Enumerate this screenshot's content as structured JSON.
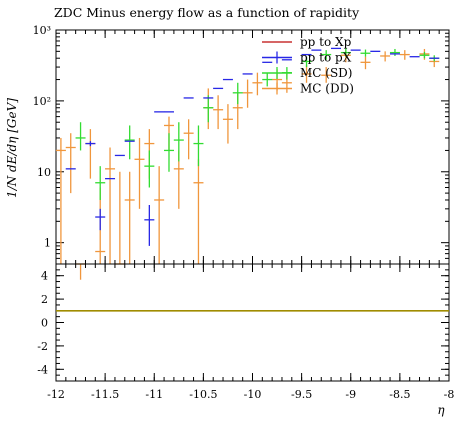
{
  "chart_data": {
    "type": "scatter",
    "title": "ZDC Minus energy flow as a function of rapidity",
    "xlabel": "η",
    "ylabel": "1/N dE/dη [GeV]",
    "xlim": [
      -12,
      -8
    ],
    "ylim_log": [
      0.5,
      1000
    ],
    "x_ticks": [
      "-12",
      "-11.5",
      "-11",
      "-10.5",
      "-10",
      "-9.5",
      "-9",
      "-8.5",
      "-8"
    ],
    "y_ticks": [
      "1",
      "10",
      "10²",
      "10³"
    ],
    "ratio_ylim": [
      -5,
      5
    ],
    "ratio_ticks": [
      "4",
      "2",
      "0",
      "-2",
      "-4"
    ],
    "legend": [
      "pp to Xp",
      "pp to pX",
      "MC (SD)",
      "MC (DD)"
    ],
    "colors": {
      "xp": "#c83232",
      "px": "#2828e6",
      "sd": "#32dc32",
      "dd": "#f0963c",
      "ratio": "#a08c00"
    },
    "series": [
      {
        "name": "pp to pX",
        "color": "#2828e6",
        "points": [
          {
            "x": -11.85,
            "y": 11,
            "lo": 11,
            "hi": 11
          },
          {
            "x": -11.65,
            "y": 25,
            "lo": 23,
            "hi": 27
          },
          {
            "x": -11.55,
            "y": 2.3,
            "lo": 1.5,
            "hi": 3
          },
          {
            "x": -11.45,
            "y": 8,
            "lo": 8,
            "hi": 8
          },
          {
            "x": -11.35,
            "y": 17,
            "lo": 17,
            "hi": 17
          },
          {
            "x": -11.25,
            "y": 27,
            "lo": 27,
            "hi": 27
          },
          {
            "x": -11.05,
            "y": 2.1,
            "lo": 0.9,
            "hi": 3.4
          },
          {
            "x": -10.95,
            "y": 70,
            "lo": 70,
            "hi": 70
          },
          {
            "x": -10.85,
            "y": 70,
            "lo": 70,
            "hi": 70
          },
          {
            "x": -10.65,
            "y": 110,
            "lo": 110,
            "hi": 110
          },
          {
            "x": -10.45,
            "y": 110,
            "lo": 110,
            "hi": 110
          },
          {
            "x": -10.35,
            "y": 150,
            "lo": 150,
            "hi": 150
          },
          {
            "x": -10.25,
            "y": 200,
            "lo": 200,
            "hi": 200
          },
          {
            "x": -10.05,
            "y": 240,
            "lo": 240,
            "hi": 240
          },
          {
            "x": -9.85,
            "y": 350,
            "lo": 350,
            "hi": 350
          },
          {
            "x": -9.65,
            "y": 380,
            "lo": 380,
            "hi": 380
          },
          {
            "x": -9.45,
            "y": 450,
            "lo": 450,
            "hi": 450
          },
          {
            "x": -9.35,
            "y": 520,
            "lo": 520,
            "hi": 520
          },
          {
            "x": -9.15,
            "y": 550,
            "lo": 550,
            "hi": 550
          },
          {
            "x": -8.95,
            "y": 520,
            "lo": 520,
            "hi": 520
          },
          {
            "x": -8.75,
            "y": 500,
            "lo": 500,
            "hi": 500
          },
          {
            "x": -8.55,
            "y": 460,
            "lo": 460,
            "hi": 460
          },
          {
            "x": -8.35,
            "y": 420,
            "lo": 420,
            "hi": 420
          },
          {
            "x": -8.15,
            "y": 400,
            "lo": 400,
            "hi": 400
          }
        ]
      },
      {
        "name": "MC (SD)",
        "color": "#32dc32",
        "points": [
          {
            "x": -11.75,
            "y": 30,
            "lo": 20,
            "hi": 50
          },
          {
            "x": -11.55,
            "y": 7,
            "lo": 4,
            "hi": 12
          },
          {
            "x": -11.25,
            "y": 28,
            "lo": 15,
            "hi": 45
          },
          {
            "x": -11.05,
            "y": 12,
            "lo": 6,
            "hi": 20
          },
          {
            "x": -10.85,
            "y": 20,
            "lo": 10,
            "hi": 35
          },
          {
            "x": -10.75,
            "y": 28,
            "lo": 14,
            "hi": 50
          },
          {
            "x": -10.55,
            "y": 25,
            "lo": 12,
            "hi": 45
          },
          {
            "x": -10.45,
            "y": 80,
            "lo": 50,
            "hi": 120
          },
          {
            "x": -10.15,
            "y": 130,
            "lo": 90,
            "hi": 180
          },
          {
            "x": -9.85,
            "y": 200,
            "lo": 160,
            "hi": 250
          },
          {
            "x": -9.65,
            "y": 250,
            "lo": 200,
            "hi": 300
          },
          {
            "x": -9.45,
            "y": 360,
            "lo": 300,
            "hi": 420
          },
          {
            "x": -9.25,
            "y": 450,
            "lo": 380,
            "hi": 520
          },
          {
            "x": -9.05,
            "y": 480,
            "lo": 420,
            "hi": 550
          },
          {
            "x": -8.85,
            "y": 470,
            "lo": 420,
            "hi": 530
          },
          {
            "x": -8.55,
            "y": 480,
            "lo": 430,
            "hi": 540
          },
          {
            "x": -8.25,
            "y": 440,
            "lo": 400,
            "hi": 490
          },
          {
            "x": -8.15,
            "y": 400,
            "lo": 360,
            "hi": 440
          }
        ]
      },
      {
        "name": "MC (DD)",
        "color": "#f0963c",
        "points": [
          {
            "x": -11.95,
            "y": 20,
            "lo": 0.3,
            "hi": 30
          },
          {
            "x": -11.85,
            "y": 22,
            "lo": 5,
            "hi": 35
          },
          {
            "x": -11.75,
            "y": 0.3,
            "lo": 0.3,
            "hi": 0.3
          },
          {
            "x": -11.65,
            "y": 25,
            "lo": 8,
            "hi": 40
          },
          {
            "x": -11.55,
            "y": 0.75,
            "lo": 0.3,
            "hi": 6
          },
          {
            "x": -11.45,
            "y": 11,
            "lo": 0.5,
            "hi": 22
          },
          {
            "x": -11.35,
            "y": 0.4,
            "lo": 0.3,
            "hi": 10
          },
          {
            "x": -11.25,
            "y": 4,
            "lo": 0.5,
            "hi": 10
          },
          {
            "x": -11.15,
            "y": 15,
            "lo": 3,
            "hi": 30
          },
          {
            "x": -11.05,
            "y": 25,
            "lo": 8,
            "hi": 40
          },
          {
            "x": -10.95,
            "y": 4,
            "lo": 0.5,
            "hi": 12
          },
          {
            "x": -10.85,
            "y": 45,
            "lo": 20,
            "hi": 60
          },
          {
            "x": -10.75,
            "y": 11,
            "lo": 3,
            "hi": 20
          },
          {
            "x": -10.65,
            "y": 35,
            "lo": 15,
            "hi": 55
          },
          {
            "x": -10.55,
            "y": 7,
            "lo": 0.5,
            "hi": 15
          },
          {
            "x": -10.45,
            "y": 80,
            "lo": 40,
            "hi": 150
          },
          {
            "x": -10.35,
            "y": 75,
            "lo": 40,
            "hi": 120
          },
          {
            "x": -10.25,
            "y": 55,
            "lo": 25,
            "hi": 90
          },
          {
            "x": -10.15,
            "y": 80,
            "lo": 40,
            "hi": 130
          },
          {
            "x": -10.05,
            "y": 130,
            "lo": 80,
            "hi": 200
          },
          {
            "x": -9.95,
            "y": 180,
            "lo": 120,
            "hi": 250
          },
          {
            "x": -9.75,
            "y": 200,
            "lo": 140,
            "hi": 280
          },
          {
            "x": -9.65,
            "y": 180,
            "lo": 130,
            "hi": 240
          },
          {
            "x": -9.45,
            "y": 240,
            "lo": 180,
            "hi": 320
          },
          {
            "x": -9.25,
            "y": 230,
            "lo": 180,
            "hi": 300
          },
          {
            "x": -9.05,
            "y": 440,
            "lo": 350,
            "hi": 520
          },
          {
            "x": -8.85,
            "y": 350,
            "lo": 280,
            "hi": 420
          },
          {
            "x": -8.65,
            "y": 430,
            "lo": 360,
            "hi": 500
          },
          {
            "x": -8.45,
            "y": 450,
            "lo": 380,
            "hi": 520
          },
          {
            "x": -8.25,
            "y": 460,
            "lo": 380,
            "hi": 540
          },
          {
            "x": -8.15,
            "y": 360,
            "lo": 300,
            "hi": 420
          }
        ]
      }
    ],
    "ratio_value": 1
  }
}
